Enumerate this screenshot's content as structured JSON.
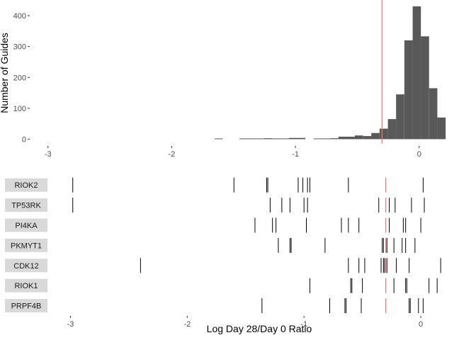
{
  "colors": {
    "bar": "#595959",
    "guide_line": "#000000",
    "reference_line": "#f8766d",
    "strip_bg": "#d9d9d9",
    "tick": "#333333"
  },
  "chart_data": [
    {
      "type": "bar",
      "subtype": "histogram",
      "ylabel": "Number of Guides",
      "xlim": [
        -3.13,
        0.23
      ],
      "ylim": [
        -15,
        430
      ],
      "x_ticks": [
        {
          "value": -3,
          "label": "-3"
        },
        {
          "value": -2,
          "label": "-2"
        },
        {
          "value": -1,
          "label": "-1"
        },
        {
          "value": 0,
          "label": "0"
        }
      ],
      "y_ticks": [
        {
          "value": 0,
          "label": "0"
        },
        {
          "value": 100,
          "label": "100"
        },
        {
          "value": 200,
          "label": "200"
        },
        {
          "value": 300,
          "label": "300"
        },
        {
          "value": 400,
          "label": "400"
        }
      ],
      "bin_width": 0.0667,
      "bins": [
        {
          "x0": -1.653,
          "count": 1
        },
        {
          "x0": -1.453,
          "count": 1
        },
        {
          "x0": -1.387,
          "count": 1
        },
        {
          "x0": -1.32,
          "count": 1
        },
        {
          "x0": -1.253,
          "count": 3
        },
        {
          "x0": -1.187,
          "count": 1
        },
        {
          "x0": -1.12,
          "count": 1
        },
        {
          "x0": -1.053,
          "count": 4
        },
        {
          "x0": -0.987,
          "count": 4
        },
        {
          "x0": -0.853,
          "count": 2
        },
        {
          "x0": -0.787,
          "count": 2
        },
        {
          "x0": -0.72,
          "count": 3
        },
        {
          "x0": -0.653,
          "count": 8
        },
        {
          "x0": -0.587,
          "count": 8
        },
        {
          "x0": -0.52,
          "count": 12
        },
        {
          "x0": -0.453,
          "count": 10
        },
        {
          "x0": -0.387,
          "count": 20
        },
        {
          "x0": -0.32,
          "count": 34
        },
        {
          "x0": -0.253,
          "count": 65
        },
        {
          "x0": -0.187,
          "count": 145
        },
        {
          "x0": -0.12,
          "count": 320
        },
        {
          "x0": -0.053,
          "count": 430
        },
        {
          "x0": 0.013,
          "count": 333
        },
        {
          "x0": 0.08,
          "count": 165
        },
        {
          "x0": 0.147,
          "count": 70
        }
      ],
      "reference_x": -0.3
    },
    {
      "type": "scatter",
      "subtype": "rug",
      "xlabel": "Log Day 28/Day 0 Ratio",
      "xlim": [
        -3.13,
        0.23
      ],
      "x_ticks": [
        {
          "value": -3,
          "label": "-3"
        },
        {
          "value": -2,
          "label": "-2"
        },
        {
          "value": -1,
          "label": "-1"
        },
        {
          "value": 0,
          "label": "0"
        }
      ],
      "reference_x": -0.3,
      "series": [
        {
          "name": "RIOK2",
          "values": [
            -2.98,
            -1.6,
            -1.32,
            -1.31,
            -1.05,
            -1.01,
            -0.97,
            -0.95,
            -0.62,
            0.02
          ]
        },
        {
          "name": "TP53RK",
          "values": [
            -2.98,
            -1.29,
            -1.19,
            -1.12,
            -1.0,
            -0.97,
            -0.36,
            -0.27,
            -0.22,
            -0.08,
            0.03
          ]
        },
        {
          "name": "PI4KA",
          "values": [
            -1.42,
            -1.27,
            -1.24,
            -0.98,
            -0.68,
            -0.62,
            -0.53,
            -0.27,
            -0.15,
            -0.13,
            0.0
          ]
        },
        {
          "name": "PKMYT1",
          "values": [
            -1.22,
            -1.12,
            -1.11,
            -0.82,
            -0.33,
            -0.32,
            -0.3,
            -0.29,
            -0.23,
            -0.16,
            -0.13,
            -0.05
          ]
        },
        {
          "name": "CDK12",
          "values": [
            -2.4,
            -0.62,
            -0.53,
            -0.48,
            -0.34,
            -0.32,
            -0.31,
            -0.29,
            -0.21,
            -0.1,
            0.17
          ]
        },
        {
          "name": "RIOK1",
          "values": [
            -0.95,
            -0.6,
            -0.59,
            -0.5,
            -0.23,
            -0.13,
            -0.12,
            0.07,
            0.14
          ]
        },
        {
          "name": "PRPF4B",
          "values": [
            -1.36,
            -0.78,
            -0.65,
            -0.64,
            -0.51,
            -0.1,
            -0.09,
            -0.02,
            0.02
          ]
        }
      ]
    }
  ]
}
